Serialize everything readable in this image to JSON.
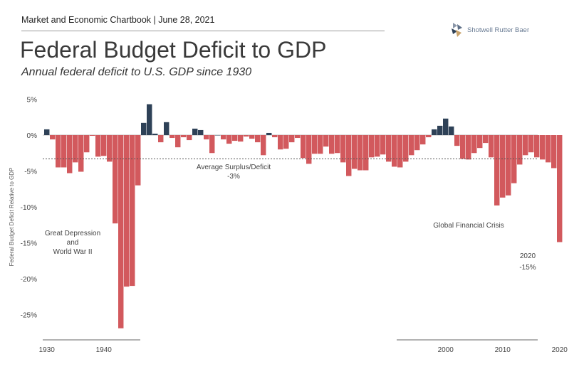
{
  "header": {
    "chartbook": "Market and Economic Chartbook | June 28, 2021",
    "title": "Federal Budget Deficit to GDP",
    "subtitle": "Annual federal deficit to U.S. GDP since 1930",
    "logo_text": "Shotwell Rutter Baer"
  },
  "chart_data": {
    "type": "bar",
    "title": "Federal Budget Deficit to GDP",
    "subtitle": "Annual federal deficit to U.S. GDP since 1930",
    "ylabel": "Federal Budget Deficit Relative to GDP",
    "xlabel": "",
    "ylim": [
      -28,
      6
    ],
    "yticks": [
      5,
      0,
      -5,
      -10,
      -15,
      -20,
      -25
    ],
    "ytick_labels": [
      "5%",
      "0%",
      "-5%",
      "-10%",
      "-15%",
      "-20%",
      "-25%"
    ],
    "xticks": [
      1930,
      1940,
      2000,
      2010,
      2020
    ],
    "colors": {
      "surplus": "#2e4157",
      "deficit": "#d2595d"
    },
    "average": {
      "value": -3.3,
      "label_line1": "Average Surplus/Deficit",
      "label_line2": "-3%"
    },
    "annotations": {
      "depression_line1": "Great Depression",
      "depression_line2": "and",
      "depression_line3": "World War II",
      "gfc": "Global Financial Crisis",
      "last_year": "2020",
      "last_value": "-15%"
    },
    "x": [
      1930,
      1931,
      1932,
      1933,
      1934,
      1935,
      1936,
      1937,
      1938,
      1939,
      1940,
      1941,
      1942,
      1943,
      1944,
      1945,
      1946,
      1947,
      1948,
      1949,
      1950,
      1951,
      1952,
      1953,
      1954,
      1955,
      1956,
      1957,
      1958,
      1959,
      1960,
      1961,
      1962,
      1963,
      1964,
      1965,
      1966,
      1967,
      1968,
      1969,
      1970,
      1971,
      1972,
      1973,
      1974,
      1975,
      1976,
      1977,
      1978,
      1979,
      1980,
      1981,
      1982,
      1983,
      1984,
      1985,
      1986,
      1987,
      1988,
      1989,
      1990,
      1991,
      1992,
      1993,
      1994,
      1995,
      1996,
      1997,
      1998,
      1999,
      2000,
      2001,
      2002,
      2003,
      2004,
      2005,
      2006,
      2007,
      2008,
      2009,
      2010,
      2011,
      2012,
      2013,
      2014,
      2015,
      2016,
      2017,
      2018,
      2019,
      2020
    ],
    "values": [
      0.8,
      -0.6,
      -4.5,
      -4.5,
      -5.3,
      -3.8,
      -5.1,
      -2.4,
      -0.1,
      -3.0,
      -2.9,
      -3.7,
      -12.3,
      -26.9,
      -21.1,
      -21.0,
      -7.0,
      1.7,
      4.3,
      0.2,
      -1.0,
      1.8,
      -0.4,
      -1.7,
      -0.3,
      -0.7,
      0.9,
      0.7,
      -0.6,
      -2.5,
      0.0,
      -0.6,
      -1.2,
      -0.8,
      -0.9,
      -0.2,
      -0.5,
      -1.0,
      -2.8,
      0.3,
      -0.3,
      -2.0,
      -1.9,
      -1.0,
      -0.4,
      -3.2,
      -4.0,
      -2.6,
      -2.6,
      -1.6,
      -2.6,
      -2.5,
      -3.8,
      -5.7,
      -4.7,
      -4.9,
      -4.9,
      -3.1,
      -3.0,
      -2.7,
      -3.7,
      -4.4,
      -4.5,
      -3.7,
      -2.8,
      -2.1,
      -1.3,
      -0.3,
      0.8,
      1.3,
      2.3,
      1.2,
      -1.5,
      -3.3,
      -3.4,
      -2.5,
      -1.8,
      -1.1,
      -3.1,
      -9.8,
      -8.7,
      -8.4,
      -6.7,
      -4.1,
      -2.8,
      -2.4,
      -3.1,
      -3.4,
      -3.8,
      -4.6,
      -14.9
    ]
  }
}
